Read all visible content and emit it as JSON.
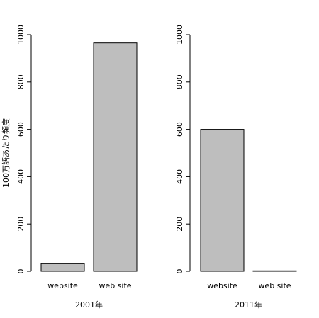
{
  "chart_data": [
    {
      "type": "bar",
      "x_label": "2001年",
      "y_label": "100万語あたり頻度",
      "categories": [
        "website",
        "web site"
      ],
      "values": [
        32,
        965
      ],
      "color": "#bebebe",
      "ylim": [
        0,
        1000
      ],
      "yticks": [
        0,
        200,
        400,
        600,
        800,
        1000
      ],
      "grid": false
    },
    {
      "type": "bar",
      "x_label": "2011年",
      "categories": [
        "website",
        "web site"
      ],
      "values": [
        600,
        2
      ],
      "color": "#bebebe",
      "ylim": [
        0,
        1000
      ],
      "yticks": [
        0,
        200,
        400,
        600,
        800,
        1000
      ],
      "grid": false
    }
  ]
}
